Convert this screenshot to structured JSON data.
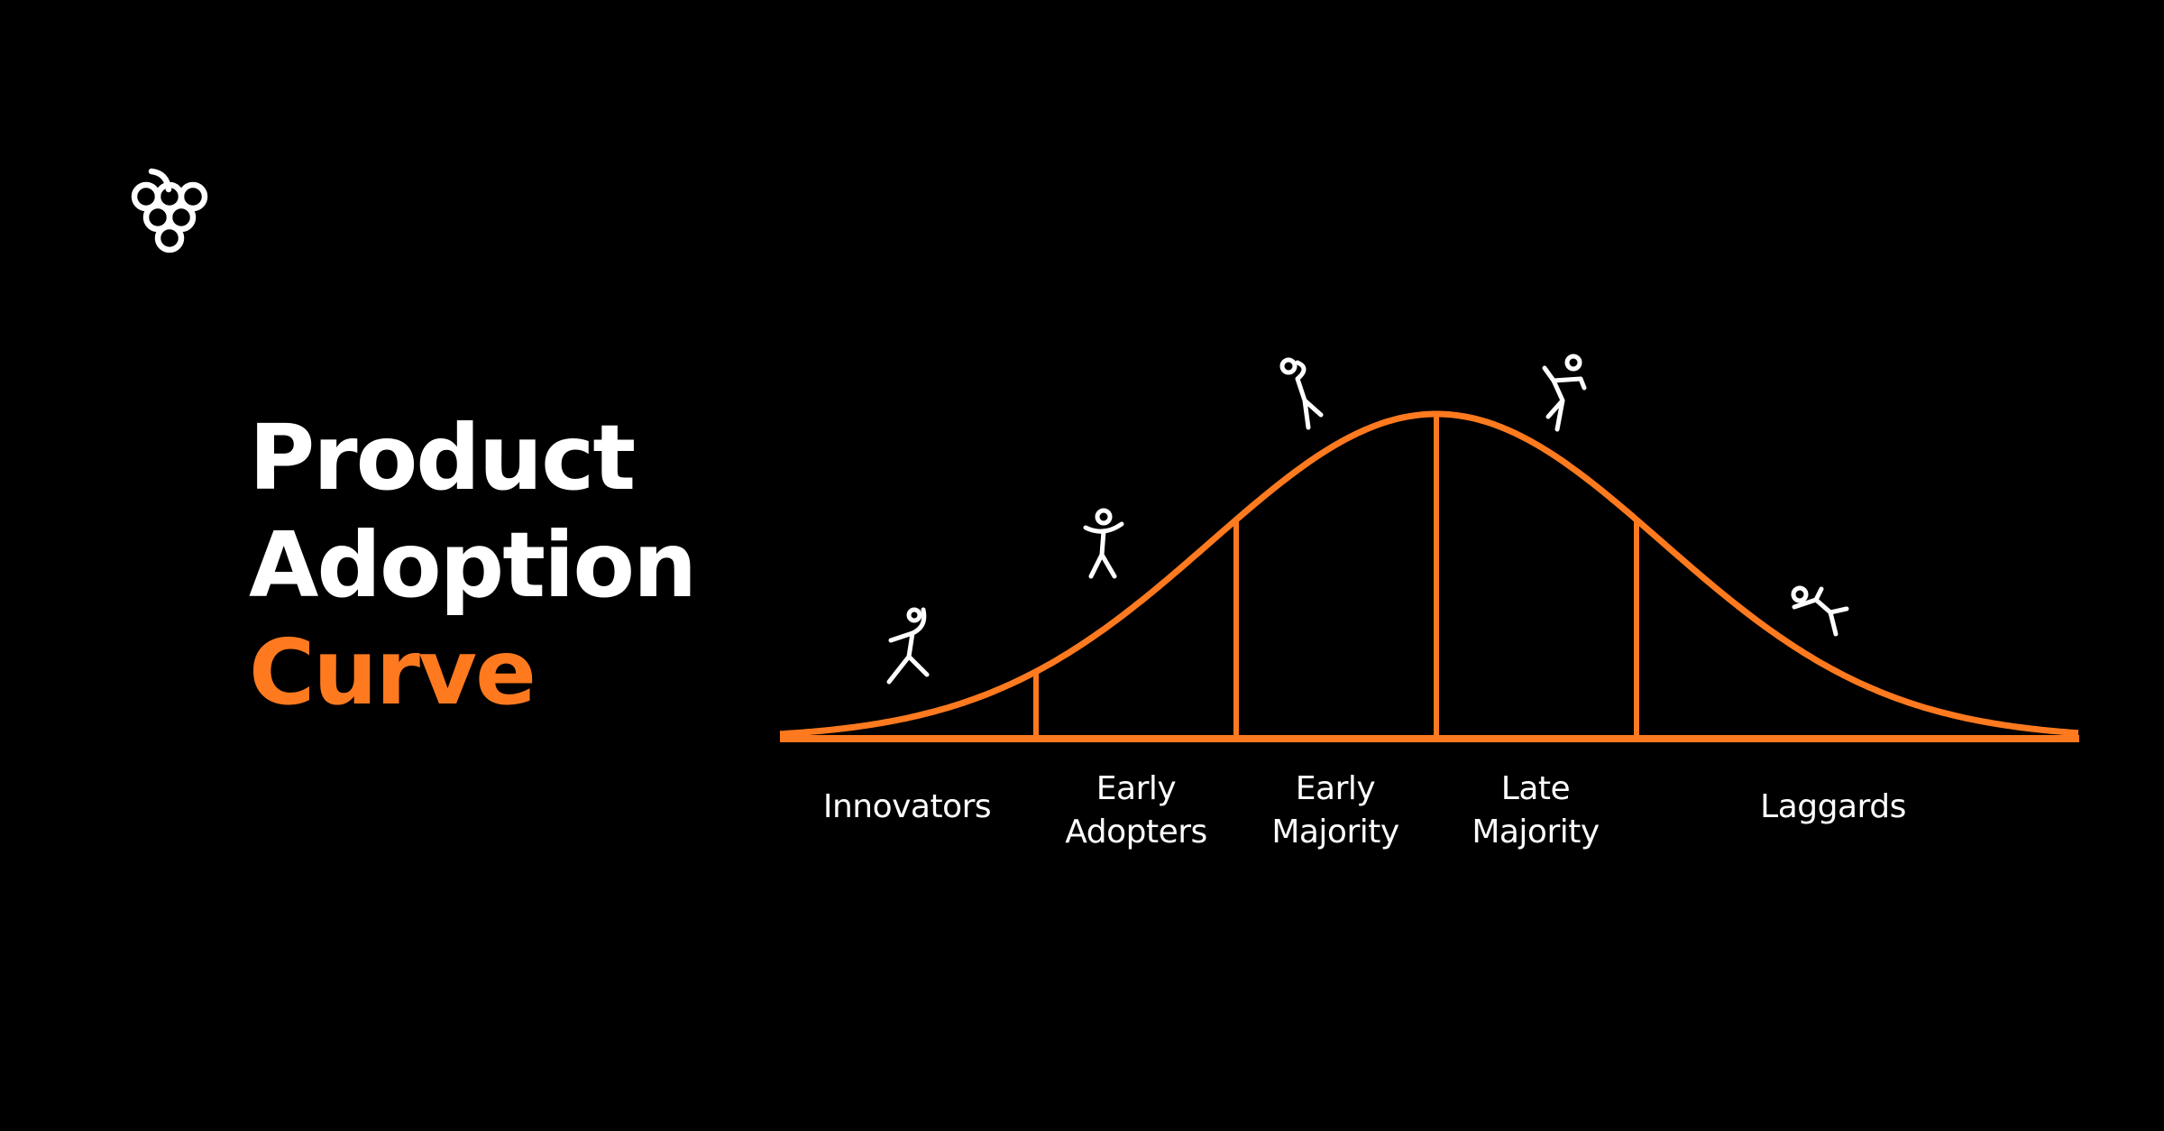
{
  "logo": {
    "icon": "grapes-icon",
    "color": "#FFFFFF"
  },
  "title": {
    "line1": "Product",
    "line2": "Adoption",
    "line3": "Curve"
  },
  "colors": {
    "background": "#000000",
    "accent": "#FF7A1F",
    "text": "#FFFFFF"
  },
  "segments": [
    {
      "line1": "Innovators",
      "line2": "",
      "icon": "running-person-icon"
    },
    {
      "line1": "Early",
      "line2": "Adopters",
      "icon": "jumping-person-icon"
    },
    {
      "line1": "Early",
      "line2": "Majority",
      "icon": "volleyball-person-icon"
    },
    {
      "line1": "Late",
      "line2": "Majority",
      "icon": "throwing-person-icon"
    },
    {
      "line1": "Laggards",
      "line2": "",
      "icon": "swimming-person-icon"
    }
  ]
}
